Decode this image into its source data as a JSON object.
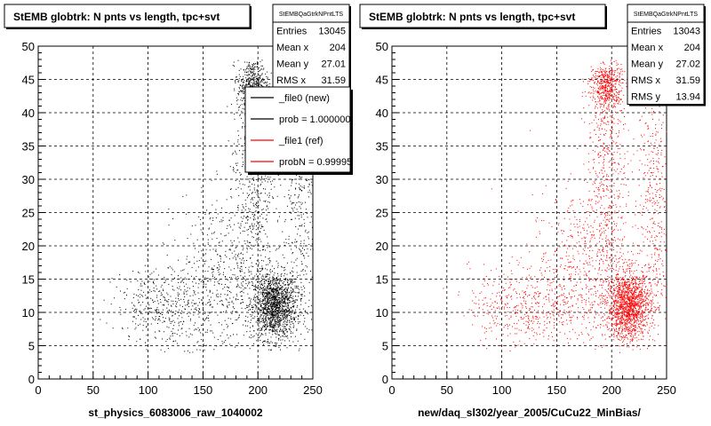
{
  "chart_data": [
    {
      "type": "scatter",
      "title": "StEMB globtrk: N pnts vs length, tpc+svt",
      "xlabel": "st_physics_6083006_raw_1040002",
      "ylabel": "",
      "xlim": [
        0,
        250
      ],
      "ylim": [
        0,
        50
      ],
      "xticks": [
        "0",
        "50",
        "100",
        "150",
        "200",
        "250"
      ],
      "yticks": [
        "0",
        "5",
        "10",
        "15",
        "20",
        "25",
        "30",
        "35",
        "40",
        "45",
        "50"
      ],
      "grid": true,
      "marker_color": "#000000",
      "stats": {
        "name": "StEMBQaGtrkNPntLTS",
        "rows": [
          {
            "label": "Entries",
            "value": "13045"
          },
          {
            "label": "Mean x",
            "value": "204"
          },
          {
            "label": "Mean y",
            "value": "27.01"
          },
          {
            "label": "RMS x",
            "value": "31.59"
          }
        ]
      },
      "legend": {
        "placement": "top-right",
        "entries": [
          {
            "label": "_file0 (new)",
            "color": "#000000"
          },
          {
            "label": "prob = 1.000000",
            "color": "#000000"
          },
          {
            "label": "_file1 (ref)",
            "color": "#ff0000"
          },
          {
            "label": "probN = 0.99995",
            "color": "#ff0000"
          }
        ]
      },
      "clusters": [
        {
          "x": 215,
          "y": 11,
          "sx": 10,
          "sy": 2.5,
          "n": 1500
        },
        {
          "x": 195,
          "y": 44,
          "sx": 7,
          "sy": 2,
          "n": 500
        },
        {
          "x": 195,
          "y": 33,
          "sx": 9,
          "sy": 9,
          "n": 500
        },
        {
          "x": 238,
          "y": 27,
          "sx": 7,
          "sy": 13,
          "n": 450
        },
        {
          "x": 175,
          "y": 16,
          "sx": 25,
          "sy": 6,
          "n": 600
        },
        {
          "x": 120,
          "y": 11,
          "sx": 25,
          "sy": 3,
          "n": 450
        }
      ]
    },
    {
      "type": "scatter",
      "title": "StEMB globtrk: N pnts vs length, tpc+svt",
      "xlabel": "new/daq_sl302/year_2005/CuCu22_MinBias/",
      "ylabel": "",
      "xlim": [
        0,
        250
      ],
      "ylim": [
        0,
        50
      ],
      "xticks": [
        "0",
        "50",
        "100",
        "150",
        "200",
        "250"
      ],
      "yticks": [
        "0",
        "5",
        "10",
        "15",
        "20",
        "25",
        "30",
        "35",
        "40",
        "45",
        "50"
      ],
      "grid": true,
      "marker_color": "#ff0000",
      "stats": {
        "name": "StEMBQaGtrkNPntLTS",
        "rows": [
          {
            "label": "Entries",
            "value": "13043"
          },
          {
            "label": "Mean x",
            "value": "204"
          },
          {
            "label": "Mean y",
            "value": "27.02"
          },
          {
            "label": "RMS x",
            "value": "31.59"
          },
          {
            "label": "RMS y",
            "value": "13.94"
          }
        ]
      },
      "clusters": [
        {
          "x": 215,
          "y": 11,
          "sx": 10,
          "sy": 2.5,
          "n": 1500
        },
        {
          "x": 195,
          "y": 44,
          "sx": 7,
          "sy": 2,
          "n": 500
        },
        {
          "x": 195,
          "y": 33,
          "sx": 9,
          "sy": 9,
          "n": 500
        },
        {
          "x": 238,
          "y": 27,
          "sx": 7,
          "sy": 13,
          "n": 450
        },
        {
          "x": 175,
          "y": 16,
          "sx": 25,
          "sy": 6,
          "n": 600
        },
        {
          "x": 120,
          "y": 11,
          "sx": 25,
          "sy": 3,
          "n": 450
        }
      ]
    }
  ]
}
